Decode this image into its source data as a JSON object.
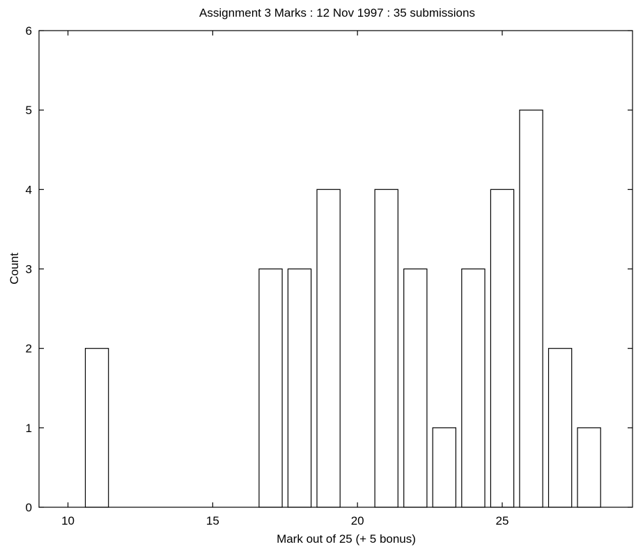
{
  "chart_data": {
    "type": "bar",
    "title": "Assignment 3 Marks : 12 Nov 1997 : 35 submissions",
    "xlabel": "Mark out of 25 (+ 5 bonus)",
    "ylabel": "Count",
    "x": [
      11,
      17,
      18,
      19,
      21,
      22,
      23,
      24,
      25,
      26,
      27,
      28
    ],
    "values": [
      2,
      3,
      3,
      4,
      4,
      3,
      1,
      3,
      4,
      5,
      2,
      1
    ],
    "xlim": [
      9,
      29.5
    ],
    "ylim": [
      0,
      6
    ],
    "xticks": [
      10,
      15,
      20,
      25
    ],
    "yticks": [
      0,
      1,
      2,
      3,
      4,
      5,
      6
    ],
    "bar_color": "#ffffff",
    "edge_color": "#000000",
    "grid": false,
    "legend": false
  }
}
